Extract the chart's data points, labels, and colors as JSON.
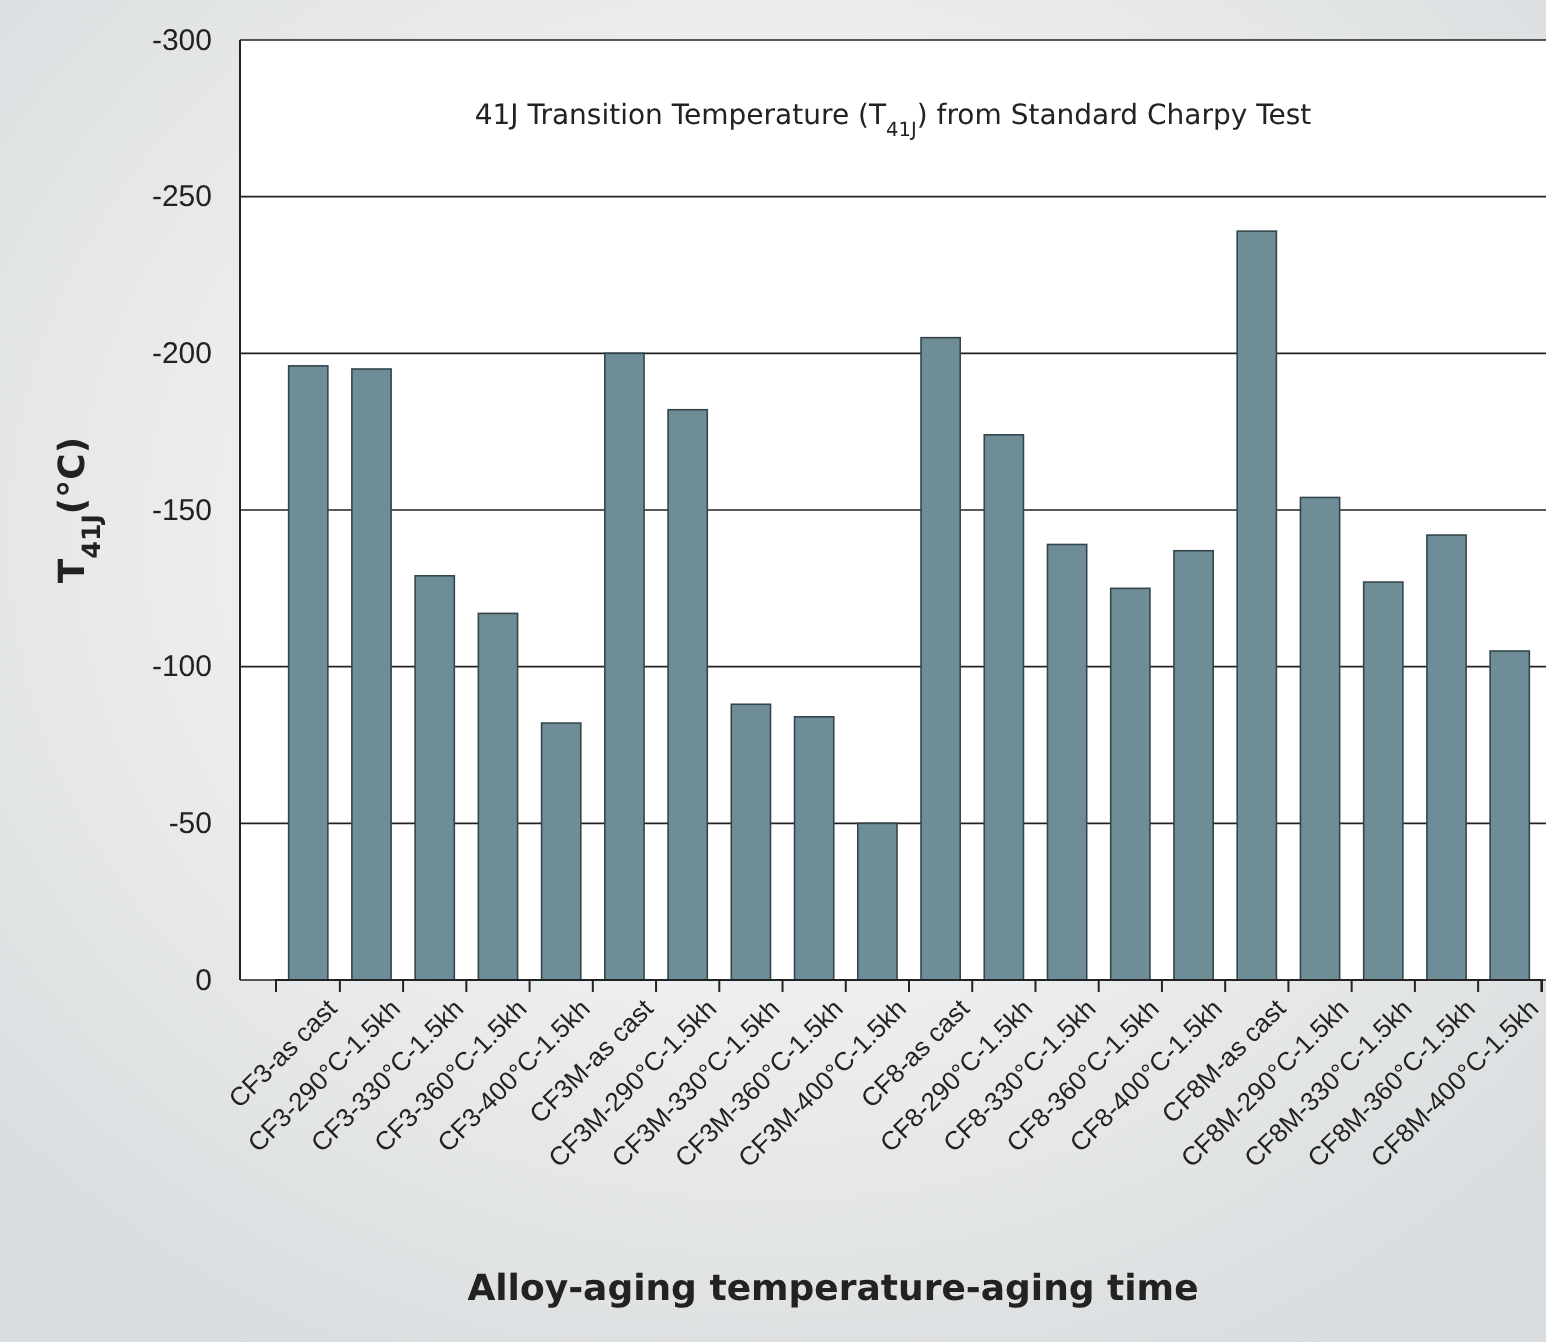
{
  "chart_data": {
    "type": "bar",
    "title": "41J Transition Temperature (T$_{41J}$) from Standard Charpy Test",
    "xlabel": "Alloy-aging temperature-aging time",
    "ylabel": "T$_{41J}$(°C)",
    "categories": [
      "CF3-as cast",
      "CF3-290°C-1.5kh",
      "CF3-330°C-1.5kh",
      "CF3-360°C-1.5kh",
      "CF3-400°C-1.5kh",
      "CF3M-as cast",
      "CF3M-290°C-1.5kh",
      "CF3M-330°C-1.5kh",
      "CF3M-360°C-1.5kh",
      "CF3M-400°C-1.5kh",
      "CF8-as cast",
      "CF8-290°C-1.5kh",
      "CF8-330°C-1.5kh",
      "CF8-360°C-1.5kh",
      "CF8-400°C-1.5kh",
      "CF8M-as cast",
      "CF8M-290°C-1.5kh",
      "CF8M-330°C-1.5kh",
      "CF8M-360°C-1.5kh",
      "CF8M-400°C-1.5kh"
    ],
    "values": [
      -196,
      -195,
      -129,
      -117,
      -82,
      -200,
      -182,
      -88,
      -84,
      -50,
      -205,
      -174,
      -139,
      -125,
      -137,
      -239,
      -154,
      -127,
      -142,
      -105
    ],
    "color": "#6f8d96",
    "ylim": [
      0,
      -300
    ],
    "yticks": [
      0,
      -50,
      -100,
      -150,
      -200,
      -250,
      -300
    ],
    "grid": "y"
  }
}
